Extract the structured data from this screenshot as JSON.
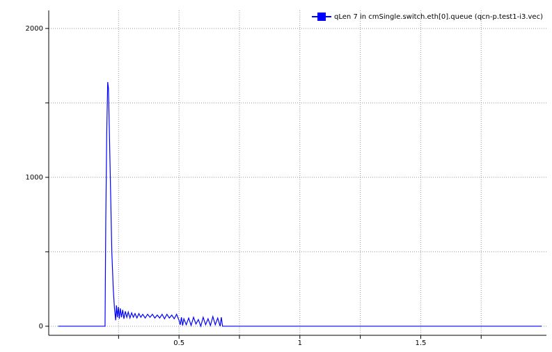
{
  "chart_data": {
    "type": "line",
    "x": [
      0,
      0.194,
      0.197,
      0.201,
      0.205,
      0.208,
      0.212,
      0.217,
      0.222,
      0.228,
      0.233,
      0.238,
      0.241,
      0.245,
      0.249,
      0.253,
      0.257,
      0.262,
      0.267,
      0.272,
      0.278,
      0.284,
      0.29,
      0.297,
      0.304,
      0.311,
      0.318,
      0.326,
      0.334,
      0.342,
      0.35,
      0.36,
      0.37,
      0.38,
      0.39,
      0.4,
      0.41,
      0.42,
      0.43,
      0.44,
      0.45,
      0.46,
      0.47,
      0.48,
      0.49,
      0.5,
      0.505,
      0.51,
      0.515,
      0.52,
      0.53,
      0.54,
      0.55,
      0.56,
      0.57,
      0.58,
      0.59,
      0.6,
      0.61,
      0.62,
      0.63,
      0.64,
      0.65,
      0.66,
      0.67,
      0.675,
      0.68,
      2.0
    ],
    "series": [
      {
        "name": "qLen 7 in cmSingle.switch.eth[0].queue (qcn-p.test1-i3.vec)",
        "color": "#0000ff",
        "values": [
          0,
          0,
          700,
          1300,
          1640,
          1600,
          1300,
          900,
          500,
          250,
          120,
          40,
          140,
          60,
          130,
          50,
          120,
          60,
          110,
          50,
          100,
          60,
          95,
          55,
          90,
          60,
          85,
          55,
          85,
          60,
          80,
          55,
          80,
          60,
          80,
          55,
          75,
          55,
          80,
          50,
          80,
          55,
          75,
          50,
          80,
          40,
          10,
          60,
          5,
          50,
          10,
          55,
          5,
          60,
          15,
          45,
          0,
          60,
          10,
          50,
          5,
          65,
          10,
          55,
          0,
          60,
          0,
          0
        ]
      }
    ],
    "xlim": [
      -0.039,
      2.02
    ],
    "ylim": [
      -61,
      2121
    ],
    "xticks": [
      0.5,
      1,
      1.5
    ],
    "xminorticks": [
      0.25,
      0.75,
      1.25,
      1.75
    ],
    "yticks": [
      0,
      1000,
      2000
    ],
    "yminorticks": [
      500,
      1500
    ],
    "grid": true,
    "legend": "top-right"
  }
}
